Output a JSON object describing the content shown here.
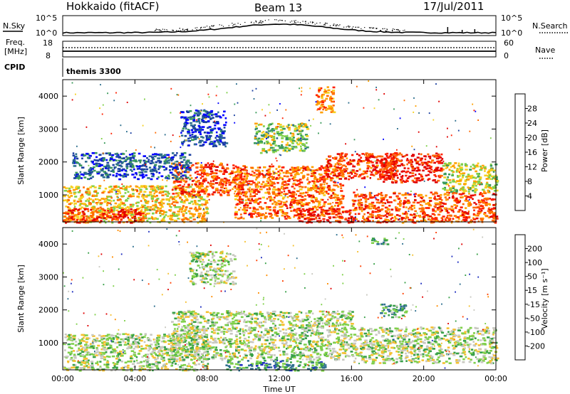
{
  "header": {
    "site": "Hokkaido (fitACF)",
    "beam": "Beam 13",
    "date": "17/Jul/2011"
  },
  "top_panels": {
    "nsky_label": "N.Sky",
    "nsky_ticks": [
      "10^5",
      "10^0"
    ],
    "nsearch_label": "N.Search",
    "nsearch_ticks": [
      "10^5",
      "10^0"
    ],
    "freq_label_line1": "Freq.",
    "freq_label_line2": "[MHz]",
    "freq_ticks": [
      "18",
      "8"
    ],
    "nave_label": "Nave",
    "nave_ticks": [
      "60",
      "0"
    ],
    "cpid_label": "CPID",
    "cpid_value": "themis 3300"
  },
  "chart_data": [
    {
      "type": "heatmap",
      "name": "power",
      "ylabel": "Slant Range [km]",
      "yticks": [
        "4000",
        "3000",
        "2000",
        "1000"
      ],
      "ytick_values": [
        4000,
        3000,
        2000,
        1000
      ],
      "ylim": [
        180,
        4500
      ],
      "xticks": [
        "00:00",
        "04:00",
        "08:00",
        "12:00",
        "16:00",
        "20:00",
        "00:00"
      ],
      "xtick_hours": [
        0,
        4,
        8,
        12,
        16,
        20,
        24
      ],
      "xlim": [
        0,
        24
      ],
      "colorbar_label": "Power [dB]",
      "colorbar_ticks": [
        "28",
        "24",
        "20",
        "16",
        "12",
        "8",
        "4"
      ],
      "colorbar_colors": [
        "#0000ff",
        "#1a3fa0",
        "#2e6f8e",
        "#3a9a5a",
        "#7fd04a",
        "#f5d020",
        "#ffa000",
        "#ff6a00",
        "#ff2000",
        "#e00000"
      ],
      "blobs": [
        {
          "t0": 0.0,
          "t1": 8.0,
          "r0": 180,
          "r1": 1300,
          "level": 0.6
        },
        {
          "t0": 0.0,
          "t1": 4.5,
          "r0": 180,
          "r1": 600,
          "level": 0.85
        },
        {
          "t0": 6.0,
          "t1": 10.0,
          "r0": 1000,
          "r1": 2000,
          "level": 0.8
        },
        {
          "t0": 9.5,
          "t1": 15.5,
          "r0": 300,
          "r1": 1900,
          "level": 0.75
        },
        {
          "t0": 13.0,
          "t1": 16.0,
          "r0": 180,
          "r1": 600,
          "level": 0.9
        },
        {
          "t0": 14.5,
          "t1": 18.5,
          "r0": 1500,
          "r1": 2300,
          "level": 0.85
        },
        {
          "t0": 17.5,
          "t1": 21.0,
          "r0": 1400,
          "r1": 2300,
          "level": 0.9
        },
        {
          "t0": 16.0,
          "t1": 24.0,
          "r0": 180,
          "r1": 1100,
          "level": 0.8
        },
        {
          "t0": 21.0,
          "t1": 24.0,
          "r0": 1100,
          "r1": 2000,
          "level": 0.5
        },
        {
          "t0": 6.5,
          "t1": 9.0,
          "r0": 2500,
          "r1": 3600,
          "level": 0.15
        },
        {
          "t0": 14.0,
          "t1": 15.0,
          "r0": 3500,
          "r1": 4300,
          "level": 0.7
        },
        {
          "t0": 0.5,
          "t1": 7.0,
          "r0": 1500,
          "r1": 2300,
          "level": 0.2
        },
        {
          "t0": 10.5,
          "t1": 13.5,
          "r0": 2300,
          "r1": 3200,
          "level": 0.45
        }
      ]
    },
    {
      "type": "heatmap",
      "name": "velocity",
      "ylabel": "Slant Range [km]",
      "yticks": [
        "4000",
        "3000",
        "2000",
        "1000"
      ],
      "ytick_values": [
        4000,
        3000,
        2000,
        1000
      ],
      "ylim": [
        180,
        4500
      ],
      "xticks": [
        "00:00",
        "04:00",
        "08:00",
        "12:00",
        "16:00",
        "20:00",
        "00:00"
      ],
      "xtick_hours": [
        0,
        4,
        8,
        12,
        16,
        20,
        24
      ],
      "xlim": [
        0,
        24
      ],
      "xlabel": "Time UT",
      "colorbar_label": "Velocity [m s⁻¹]",
      "colorbar_ticks": [
        "200",
        "100",
        "50",
        "15",
        "-15",
        "-50",
        "-100",
        "-200"
      ],
      "colorbar_colors": [
        "#2030c0",
        "#2e6f8e",
        "#38a048",
        "#7fd04a",
        "#c8c8c0",
        "#f5c030",
        "#ff8c00",
        "#ff4000",
        "#e00000"
      ],
      "blobs": [
        {
          "t0": 0.0,
          "t1": 8.0,
          "r0": 180,
          "r1": 1300,
          "level": 0.45
        },
        {
          "t0": 6.0,
          "t1": 16.0,
          "r0": 500,
          "r1": 2000,
          "level": 0.45
        },
        {
          "t0": 16.0,
          "t1": 24.0,
          "r0": 400,
          "r1": 1500,
          "level": 0.45
        },
        {
          "t0": 9.0,
          "t1": 14.5,
          "r0": 180,
          "r1": 500,
          "level": 0.25
        },
        {
          "t0": 17.5,
          "t1": 19.0,
          "r0": 1800,
          "r1": 2200,
          "level": 0.3
        },
        {
          "t0": 17.0,
          "t1": 18.0,
          "r0": 4000,
          "r1": 4200,
          "level": 0.3
        },
        {
          "t0": 18.5,
          "t1": 19.5,
          "r0": 900,
          "r1": 1000,
          "level": 0.3
        },
        {
          "t0": 7.0,
          "t1": 9.5,
          "r0": 2800,
          "r1": 3800,
          "level": 0.45
        }
      ]
    }
  ]
}
